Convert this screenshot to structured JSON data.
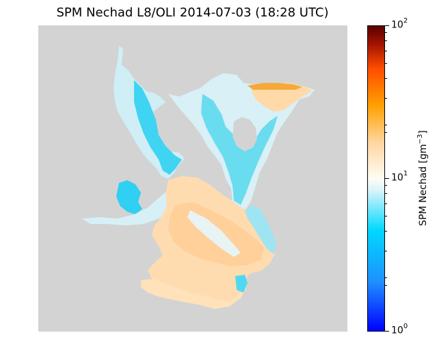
{
  "map": {
    "title": "SPM Nechad L8/OLI 2014-07-03 (18:28 UTC)",
    "background_color": "#d3d3d3",
    "palette": {
      "low_blue": "#00c8f0",
      "mid_white": "#f4f0e6",
      "high_orange": "#ffd29a",
      "peak_orange": "#f5a623"
    }
  },
  "colorbar": {
    "label_text": "SPM Nechad [gm",
    "label_exponent": "−3",
    "label_close": "]",
    "ticks": [
      {
        "base": "10",
        "exp": "2"
      },
      {
        "base": "10",
        "exp": "1"
      },
      {
        "base": "10",
        "exp": "0"
      }
    ],
    "scale": "log",
    "range": [
      1,
      100
    ],
    "colors": [
      "#0000ff",
      "#1e90ff",
      "#00d8ff",
      "#ffffff",
      "#ffd59e",
      "#ffa000",
      "#ff4d00",
      "#5a0000"
    ]
  }
}
